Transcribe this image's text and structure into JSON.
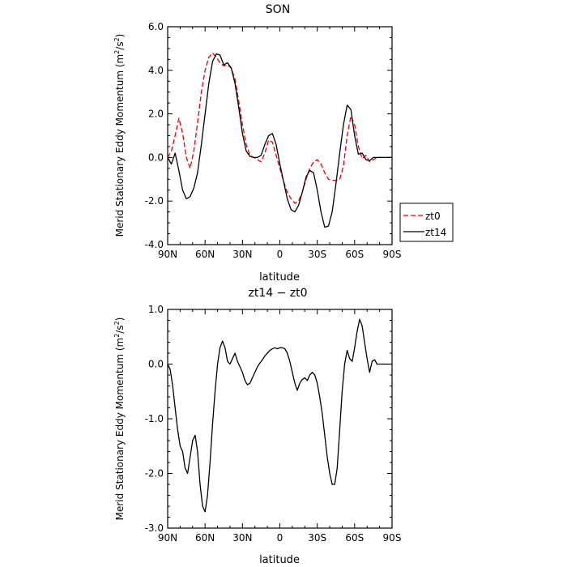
{
  "chart_data": [
    {
      "type": "line",
      "title": "SON",
      "xlabel": "latitude",
      "ylabel": "Merid Stationary Eddy Momentum (m",
      "ylabel_sup": "2",
      "ylabel_mid": "/s",
      "ylabel_sup2": "2",
      "ylabel_end": ")",
      "xlim": [
        90,
        -90
      ],
      "ylim": [
        -4,
        6
      ],
      "xticks": [
        90,
        60,
        30,
        0,
        -30,
        -60,
        -90
      ],
      "xtick_labels": [
        "90N",
        "60N",
        "30N",
        "0",
        "30S",
        "60S",
        "90S"
      ],
      "yticks": [
        -4,
        -2,
        0,
        2,
        4,
        6
      ],
      "ytick_labels": [
        "-4.0",
        "-2.0",
        "0.0",
        "2.0",
        "4.0",
        "6.0"
      ],
      "legend": "right",
      "series": [
        {
          "name": "zt0",
          "color": "#e8000b",
          "dash": "dashed",
          "x": [
            90,
            87,
            84,
            81,
            78,
            75,
            72,
            69,
            66,
            63,
            60,
            57,
            54,
            51,
            48,
            45,
            42,
            39,
            36,
            33,
            30,
            27,
            24,
            21,
            18,
            15,
            12,
            9,
            6,
            3,
            0,
            -3,
            -6,
            -9,
            -12,
            -15,
            -18,
            -21,
            -24,
            -27,
            -30,
            -33,
            -36,
            -39,
            -42,
            -45,
            -48,
            -51,
            -54,
            -57,
            -60,
            -63,
            -66,
            -69,
            -72,
            -75,
            -78,
            -81,
            -84,
            -87,
            -90
          ],
          "y": [
            0.0,
            0.3,
            1.0,
            1.8,
            1.1,
            0.0,
            -0.5,
            0.3,
            1.6,
            3.0,
            4.0,
            4.6,
            4.8,
            4.6,
            4.35,
            4.2,
            4.25,
            4.1,
            3.6,
            2.6,
            1.5,
            0.6,
            0.1,
            0.0,
            -0.1,
            -0.2,
            0.2,
            0.8,
            0.7,
            0.1,
            -0.5,
            -1.1,
            -1.6,
            -1.9,
            -2.1,
            -2.0,
            -1.6,
            -1.0,
            -0.5,
            -0.2,
            -0.1,
            -0.3,
            -0.7,
            -1.0,
            -1.05,
            -1.05,
            -1.0,
            -0.4,
            1.0,
            1.9,
            1.5,
            0.5,
            -0.05,
            0.1,
            -0.2,
            -0.1,
            0,
            0,
            0,
            0,
            0
          ]
        },
        {
          "name": "zt14",
          "color": "#000000",
          "dash": "solid",
          "x": [
            90,
            87,
            84,
            81,
            78,
            75,
            72,
            69,
            66,
            63,
            60,
            57,
            54,
            51,
            48,
            45,
            42,
            39,
            36,
            33,
            30,
            27,
            24,
            21,
            18,
            15,
            12,
            9,
            6,
            3,
            0,
            -3,
            -6,
            -9,
            -12,
            -15,
            -18,
            -21,
            -24,
            -27,
            -30,
            -33,
            -36,
            -39,
            -42,
            -45,
            -48,
            -51,
            -54,
            -57,
            -60,
            -63,
            -66,
            -69,
            -72,
            -75,
            -78,
            -81,
            -84,
            -87,
            -90
          ],
          "y": [
            0.0,
            -0.3,
            0.2,
            -0.6,
            -1.5,
            -1.9,
            -1.8,
            -1.4,
            -0.7,
            0.6,
            2.0,
            3.4,
            4.4,
            4.75,
            4.7,
            4.25,
            4.35,
            4.1,
            3.4,
            2.3,
            1.1,
            0.3,
            0.05,
            0.0,
            0.0,
            0.1,
            0.6,
            1.0,
            1.1,
            0.6,
            -0.3,
            -1.1,
            -1.9,
            -2.4,
            -2.5,
            -2.2,
            -1.6,
            -0.9,
            -0.6,
            -0.7,
            -1.5,
            -2.5,
            -3.2,
            -3.15,
            -2.5,
            -1.2,
            0.2,
            1.5,
            2.4,
            2.2,
            1.0,
            0.15,
            0.2,
            -0.1,
            -0.15,
            0,
            0,
            0,
            0,
            0,
            0
          ]
        }
      ]
    },
    {
      "type": "line",
      "title": "zt14 − zt0",
      "xlabel": "latitude",
      "ylabel": "Merid Stationary Eddy Momentum (m",
      "ylabel_sup": "2",
      "ylabel_mid": "/s",
      "ylabel_sup2": "2",
      "ylabel_end": ")",
      "xlim": [
        90,
        -90
      ],
      "ylim": [
        -3,
        1
      ],
      "xticks": [
        90,
        60,
        30,
        0,
        -30,
        -60,
        -90
      ],
      "xtick_labels": [
        "90N",
        "60N",
        "30N",
        "0",
        "30S",
        "60S",
        "90S"
      ],
      "yticks": [
        -3,
        -2,
        -1,
        0,
        1
      ],
      "ytick_labels": [
        "-3.0",
        "-2.0",
        "-1.0",
        "0.0",
        "1.0"
      ],
      "series": [
        {
          "name": "zt14 − zt0",
          "color": "#000000",
          "dash": "solid",
          "x": [
            90,
            88,
            86,
            84,
            82,
            80,
            78,
            76,
            74,
            72,
            70,
            68,
            66,
            64,
            62,
            60,
            58,
            56,
            54,
            52,
            50,
            48,
            46,
            44,
            42,
            40,
            38,
            36,
            34,
            32,
            30,
            28,
            26,
            24,
            22,
            20,
            18,
            16,
            14,
            12,
            10,
            8,
            6,
            4,
            2,
            0,
            -2,
            -4,
            -6,
            -8,
            -10,
            -12,
            -14,
            -16,
            -18,
            -20,
            -22,
            -24,
            -26,
            -28,
            -30,
            -32,
            -34,
            -36,
            -38,
            -40,
            -42,
            -44,
            -46,
            -48,
            -50,
            -52,
            -54,
            -56,
            -58,
            -60,
            -62,
            -64,
            -66,
            -68,
            -70,
            -72,
            -74,
            -76,
            -78,
            -80,
            -82,
            -84,
            -86,
            -88,
            -90
          ],
          "y": [
            0.0,
            -0.1,
            -0.4,
            -0.8,
            -1.2,
            -1.5,
            -1.6,
            -1.9,
            -2.0,
            -1.7,
            -1.4,
            -1.3,
            -1.6,
            -2.2,
            -2.6,
            -2.7,
            -2.4,
            -1.8,
            -1.1,
            -0.5,
            0.0,
            0.3,
            0.42,
            0.3,
            0.05,
            0.0,
            0.1,
            0.2,
            0.05,
            -0.05,
            -0.15,
            -0.3,
            -0.38,
            -0.35,
            -0.25,
            -0.15,
            -0.05,
            0.02,
            0.08,
            0.15,
            0.2,
            0.25,
            0.28,
            0.3,
            0.28,
            0.3,
            0.3,
            0.28,
            0.2,
            0.05,
            -0.15,
            -0.35,
            -0.48,
            -0.35,
            -0.28,
            -0.25,
            -0.3,
            -0.2,
            -0.15,
            -0.2,
            -0.35,
            -0.6,
            -0.9,
            -1.3,
            -1.7,
            -2.0,
            -2.2,
            -2.2,
            -1.9,
            -1.2,
            -0.5,
            0.0,
            0.25,
            0.1,
            0.05,
            0.3,
            0.6,
            0.82,
            0.7,
            0.4,
            0.1,
            -0.15,
            0.05,
            0.08,
            0.0,
            0.0,
            0.0,
            0.0,
            0.0,
            0.0,
            0.0
          ]
        }
      ]
    }
  ]
}
